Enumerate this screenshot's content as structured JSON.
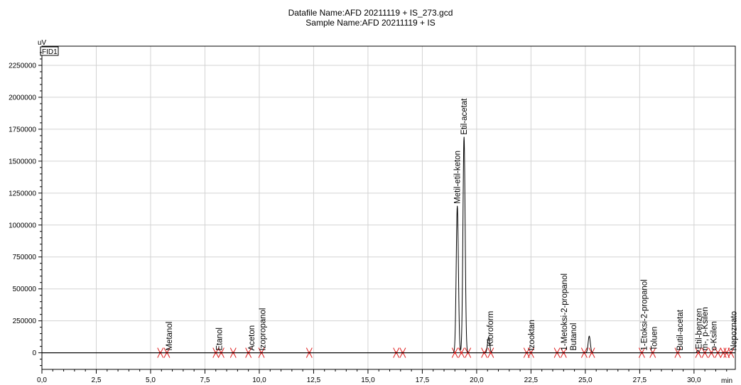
{
  "header": {
    "datafile_line": "Datafile Name:AFD 20211119 + IS_273.gcd",
    "sample_line": "Sample Name:AFD 20211119 + IS"
  },
  "chart_data": {
    "type": "line",
    "ylabel": "uV",
    "xunit": "min",
    "channel": "FID1",
    "xlim": [
      0,
      31.9
    ],
    "ylim": [
      -130000,
      2400000
    ],
    "x_ticks": [
      0,
      2.5,
      5,
      7.5,
      10,
      12.5,
      15,
      17.5,
      20,
      22.5,
      25,
      27.5,
      30
    ],
    "x_tick_labels": [
      "0,0",
      "2,5",
      "5,0",
      "7,5",
      "10,0",
      "12,5",
      "15,0",
      "17,5",
      "20,0",
      "22,5",
      "25,0",
      "27,5",
      "30,0"
    ],
    "y_ticks": [
      0,
      250000,
      500000,
      750000,
      1000000,
      1250000,
      1500000,
      1750000,
      2000000,
      2250000
    ],
    "y_tick_labels": [
      "0",
      "250000",
      "500000",
      "750000",
      "1000000",
      "1250000",
      "1500000",
      "1750000",
      "2000000",
      "2250000"
    ],
    "grid": true,
    "series": [
      {
        "color": "#000000",
        "peaks": [
          {
            "x": 19.11,
            "height": 1150000,
            "width": 0.05
          },
          {
            "x": 19.42,
            "height": 1690000,
            "width": 0.05
          },
          {
            "x": 20.55,
            "height": 120000,
            "width": 0.05
          },
          {
            "x": 25.18,
            "height": 130000,
            "width": 0.05
          },
          {
            "x": 30.18,
            "height": 20000,
            "width": 0.04
          }
        ]
      }
    ],
    "peak_labels": [
      {
        "x": 5.85,
        "text": "Metanol"
      },
      {
        "x": 8.15,
        "text": "Etanol"
      },
      {
        "x": 9.65,
        "text": "Aceton"
      },
      {
        "x": 10.15,
        "text": "Izopropanol"
      },
      {
        "x": 19.11,
        "text": "Metil-etil-keton"
      },
      {
        "x": 19.42,
        "text": "Etil-acetat"
      },
      {
        "x": 20.63,
        "text": "Kloroform"
      },
      {
        "x": 22.52,
        "text": "Izooktan"
      },
      {
        "x": 24.03,
        "text": "1-Metoksi-2-propanol"
      },
      {
        "x": 24.45,
        "text": "Butanol"
      },
      {
        "x": 27.7,
        "text": "1-Etoksi-2-propanol"
      },
      {
        "x": 28.15,
        "text": "Toluen"
      },
      {
        "x": 29.35,
        "text": "Butil-acetat"
      },
      {
        "x": 30.22,
        "text": "Etil-benzen"
      },
      {
        "x": 30.5,
        "text": "m-, p-Ksilen"
      },
      {
        "x": 30.9,
        "text": "o-Ksilen"
      },
      {
        "x": 31.82,
        "text": "Nepoznato"
      }
    ],
    "integration_marks": [
      5.45,
      5.75,
      8.0,
      8.25,
      8.8,
      9.5,
      10.1,
      12.3,
      16.3,
      16.6,
      19.0,
      19.3,
      19.6,
      20.35,
      20.65,
      22.3,
      22.5,
      23.7,
      24.0,
      24.95,
      25.3,
      27.6,
      28.1,
      29.25,
      30.2,
      30.5,
      30.8,
      31.1,
      31.35,
      31.5,
      31.7
    ]
  }
}
